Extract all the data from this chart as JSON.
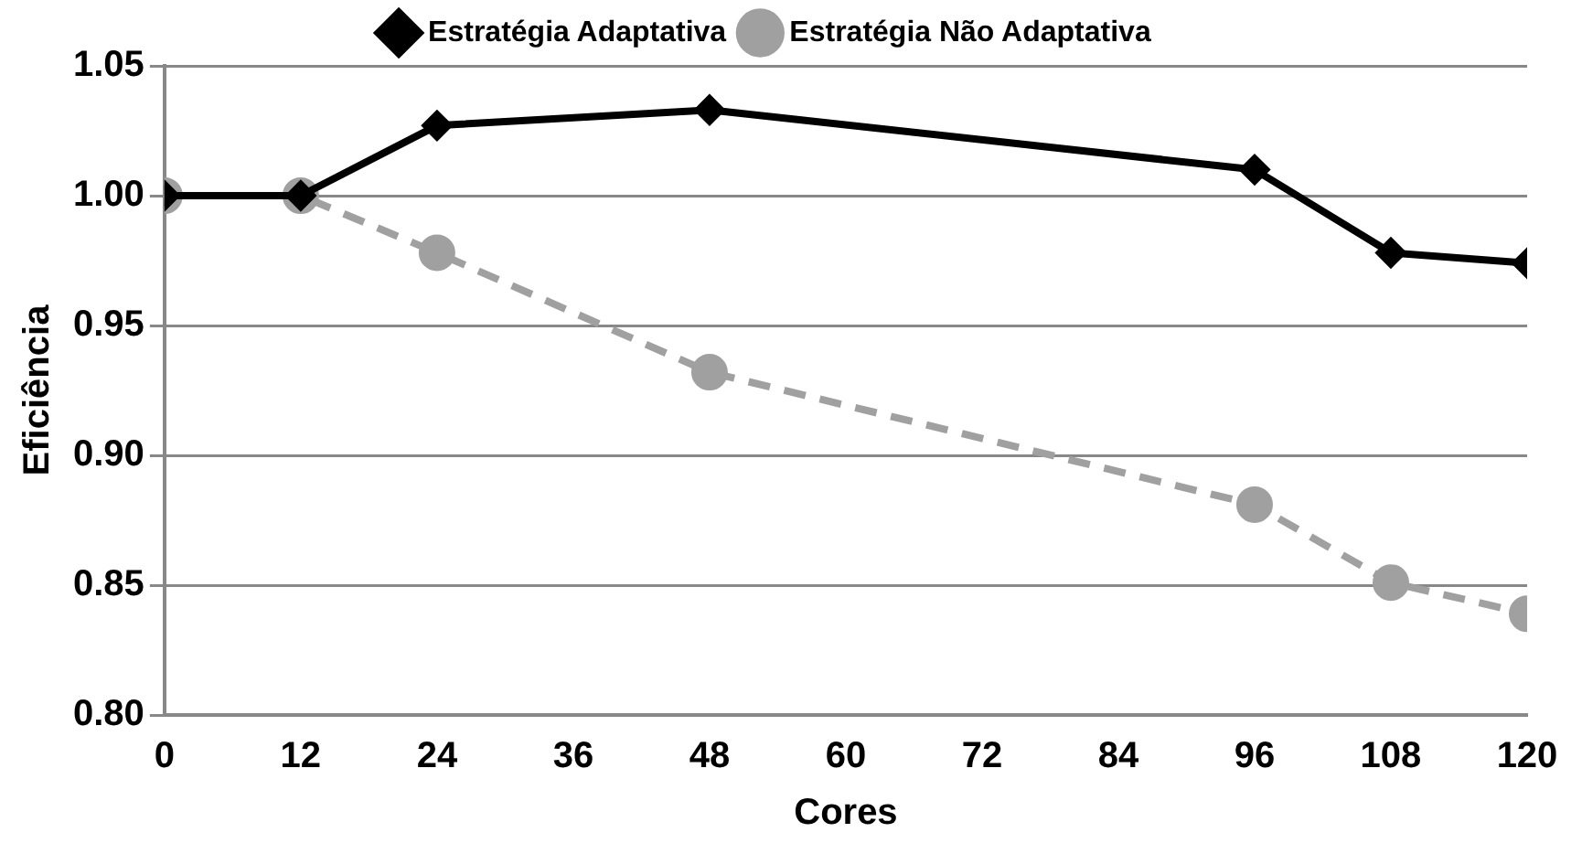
{
  "chart_data": {
    "type": "line",
    "xlabel": "Cores",
    "ylabel": "Eficiência",
    "x": [
      0,
      12,
      24,
      48,
      96,
      108,
      120
    ],
    "series": [
      {
        "name": "Estratégia Adaptativa",
        "color": "#000000",
        "marker": "diamond",
        "line_style": "solid",
        "values": [
          1.0,
          1.0,
          1.027,
          1.033,
          1.01,
          0.978,
          0.974
        ]
      },
      {
        "name": "Estratégia Não Adaptativa",
        "color": "#a0a0a0",
        "marker": "circle",
        "line_style": "dashed",
        "values": [
          1.0,
          1.0,
          0.978,
          0.932,
          0.881,
          0.851,
          0.839
        ]
      }
    ],
    "xlim": [
      0,
      120
    ],
    "xticks": [
      0,
      12,
      24,
      36,
      48,
      60,
      72,
      84,
      96,
      108,
      120
    ],
    "ylim": [
      0.8,
      1.05
    ],
    "yticks": [
      {
        "value": 0.8,
        "label": "0.80"
      },
      0.85,
      {
        "value": 0.9,
        "label": "0.90"
      },
      0.95,
      {
        "value": 1.0,
        "label": "1.00"
      },
      1.05
    ],
    "grid": "y",
    "legend": "top"
  }
}
